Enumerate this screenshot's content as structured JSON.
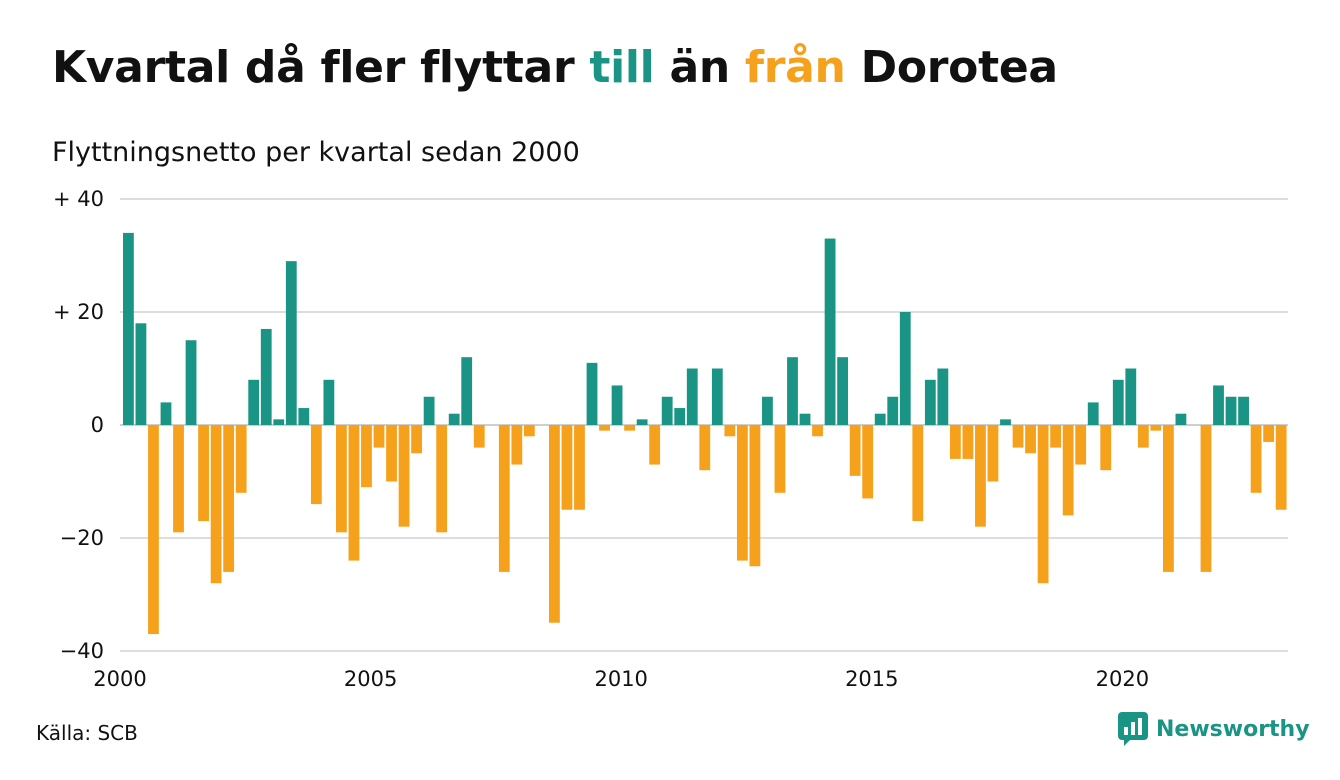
{
  "title": {
    "part1": "Kvartal då fler flyttar ",
    "pos_word": "till",
    "part2": " än ",
    "neg_word": "från",
    "part3": " Dorotea"
  },
  "subtitle": "Flyttningsnetto per kvartal sedan 2000",
  "source": "Källa: SCB",
  "brand": "Newsworthy",
  "colors": {
    "positive": "#1a9484",
    "negative": "#f5a11c",
    "grid": "#dddddd"
  },
  "chart_data": {
    "type": "bar",
    "title": "Kvartal då fler flyttar till än från Dorotea",
    "subtitle": "Flyttningsnetto per kvartal sedan 2000",
    "ylim": [
      -40,
      40
    ],
    "y_ticks": [
      {
        "value": 40,
        "label": "+ 40"
      },
      {
        "value": 20,
        "label": "+ 20"
      },
      {
        "value": 0,
        "label": "0"
      },
      {
        "value": -20,
        "label": "−20"
      },
      {
        "value": -40,
        "label": "−40"
      }
    ],
    "x_ticks": [
      {
        "year": 2000,
        "label": "2000"
      },
      {
        "year": 2005,
        "label": "2005"
      },
      {
        "year": 2010,
        "label": "2010"
      },
      {
        "year": 2015,
        "label": "2015"
      },
      {
        "year": 2020,
        "label": "2020"
      }
    ],
    "grid": true,
    "legend": "none",
    "first_quarter": "2000-Q1",
    "values": [
      34,
      18,
      -37,
      4,
      -19,
      15,
      -17,
      -28,
      -26,
      -12,
      8,
      17,
      1,
      29,
      3,
      -14,
      8,
      -19,
      -24,
      -11,
      -4,
      -10,
      -18,
      -5,
      5,
      -19,
      2,
      12,
      -4,
      0,
      -26,
      -7,
      -2,
      0,
      -35,
      -15,
      -15,
      11,
      -1,
      7,
      -1,
      1,
      -7,
      5,
      3,
      10,
      -8,
      10,
      -2,
      -24,
      -25,
      5,
      -12,
      12,
      2,
      -2,
      33,
      12,
      -9,
      -13,
      2,
      5,
      20,
      -17,
      8,
      10,
      -6,
      -6,
      -18,
      -10,
      1,
      -4,
      -5,
      -28,
      -4,
      -16,
      -7,
      4,
      -8,
      8,
      10,
      -4,
      -1,
      -26,
      2,
      0,
      -26,
      7,
      5,
      5,
      -12,
      -3,
      -15
    ]
  }
}
